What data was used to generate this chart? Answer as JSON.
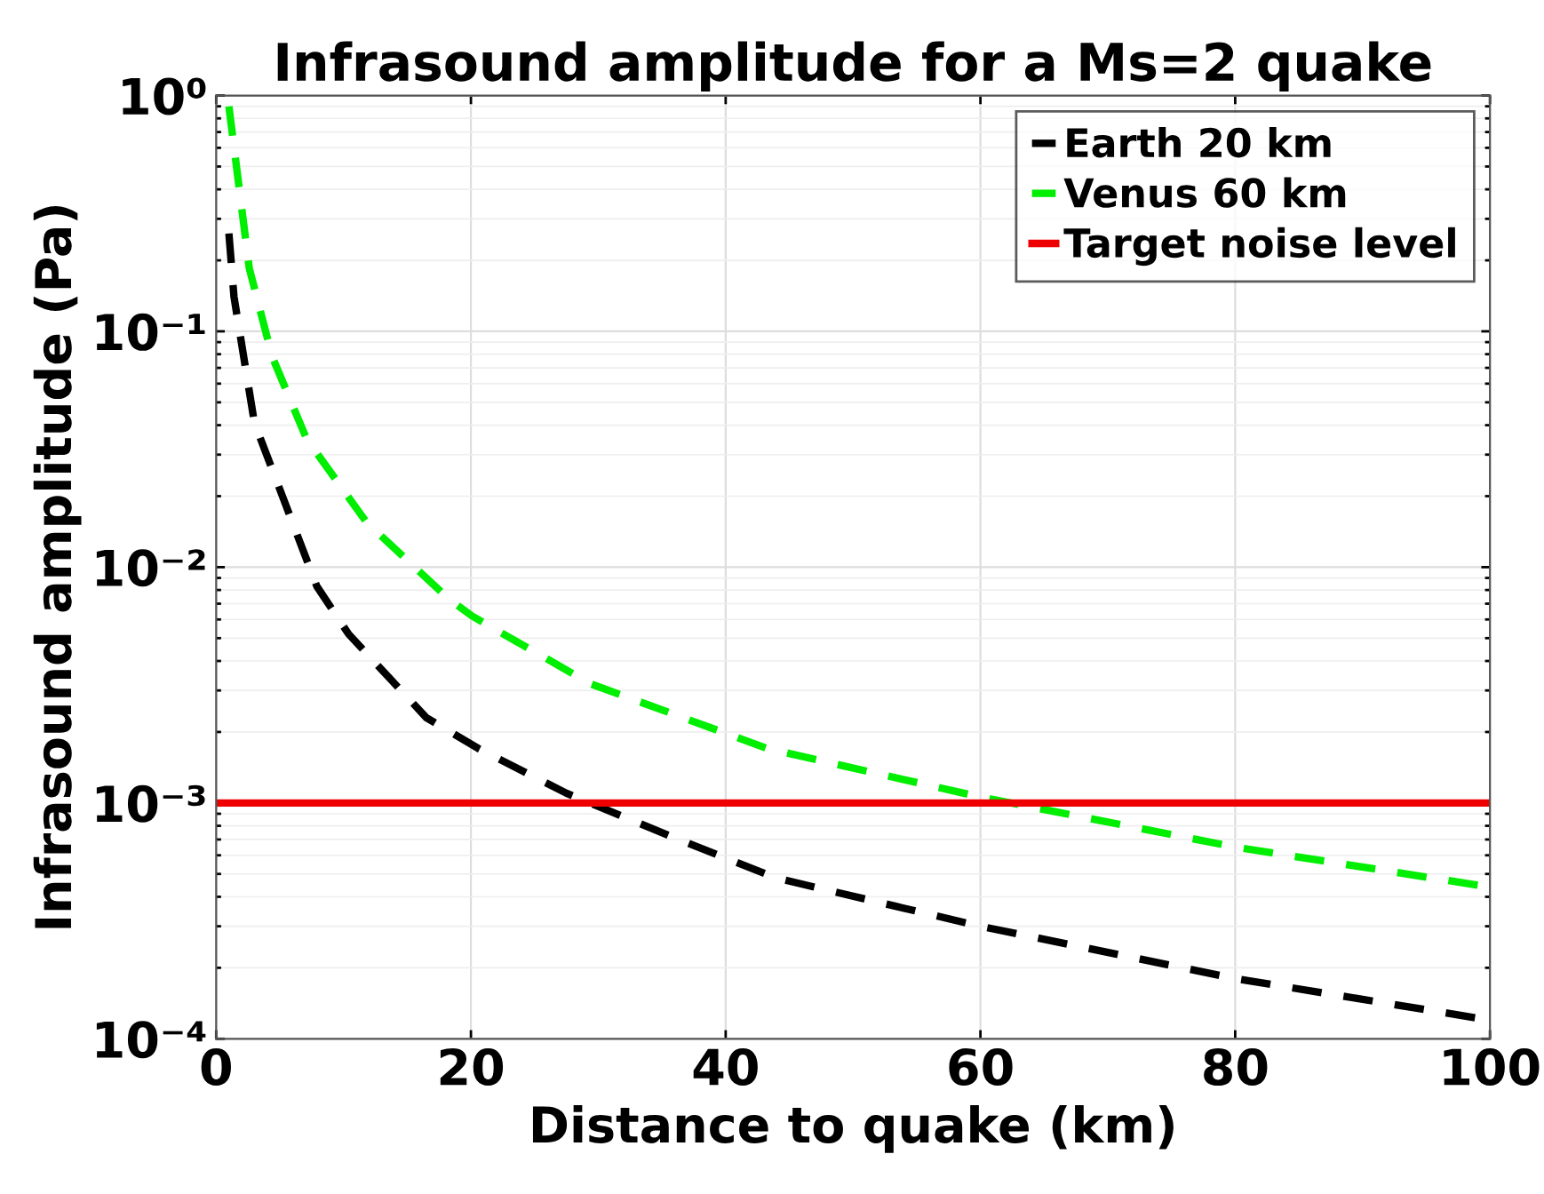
{
  "chart_data": {
    "type": "line",
    "title": "Infrasound amplitude for a Ms=2 quake",
    "xlabel": "Distance to quake (km)",
    "ylabel": "Infrasound amplitude (Pa)",
    "series": [
      {
        "name": "Earth 20 km",
        "color": "#000000",
        "line_style": "dashed",
        "x": [
          1,
          1.4,
          3,
          7.9,
          10.4,
          16.5,
          20.6,
          27.5,
          36.3,
          44,
          60,
          80,
          100
        ],
        "values": [
          0.26,
          0.14,
          0.041,
          0.0083,
          0.0052,
          0.0023,
          0.0017,
          0.0011,
          0.0007,
          0.00048,
          0.0003,
          0.00018,
          0.00012
        ]
      },
      {
        "name": "Venus 60 km",
        "color": "#00ee00",
        "line_style": "dashed",
        "x": [
          1,
          2.6,
          4.4,
          7.1,
          11.8,
          18.3,
          20.1,
          29.4,
          43.3,
          60,
          80,
          100
        ],
        "values": [
          0.9,
          0.185,
          0.078,
          0.035,
          0.0155,
          0.0073,
          0.0062,
          0.0032,
          0.0017,
          0.00106,
          0.00065,
          0.00044
        ]
      }
    ],
    "ref_lines": [
      {
        "axis": "y",
        "value": 0.001,
        "label": "Target noise level",
        "color": "#ee0000",
        "line_style": "solid"
      }
    ],
    "log": "y",
    "xlim": [
      0,
      100
    ],
    "ylim": [
      0.0001,
      1
    ],
    "xticks": [
      0,
      20,
      40,
      60,
      80,
      100
    ],
    "yticks": [
      {
        "value": 0.0001,
        "label": "10⁻⁴"
      },
      {
        "value": 0.001,
        "label": "10⁻³"
      },
      {
        "value": 0.01,
        "label": "10⁻²"
      },
      {
        "value": 0.1,
        "label": "10⁻¹"
      },
      {
        "value": 1,
        "label": "10⁰"
      }
    ],
    "grid": true,
    "legend": "top right"
  }
}
